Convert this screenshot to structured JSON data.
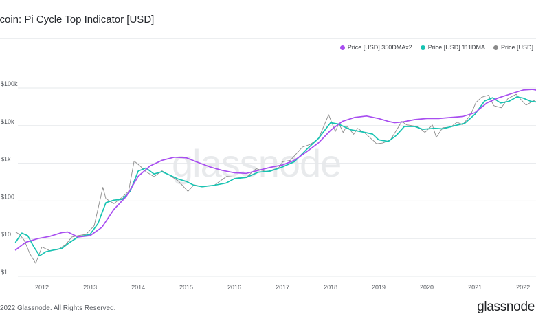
{
  "header": {
    "title": "itcoin: Pi Cycle Top Indicator [USD]"
  },
  "legend": [
    {
      "label": "Price [USD] 350DMAx2",
      "color": "#a84ef0"
    },
    {
      "label": "Price [USD] 111DMA",
      "color": "#17c3b2"
    },
    {
      "label": "Price [USD]",
      "color": "#8a8a8a"
    }
  ],
  "watermark": "glassnode",
  "footer": {
    "copyright": "2022 Glassnode. All Rights Reserved.",
    "brand": "glassnode"
  },
  "chart_data": {
    "type": "line",
    "title": "itcoin: Pi Cycle Top Indicator [USD]",
    "xlabel": "",
    "ylabel": "",
    "y_scale": "log",
    "ylim": [
      1,
      200000
    ],
    "xlim": [
      "2011-06-01",
      "2022-05-01"
    ],
    "grid": true,
    "legend_position": "top-right",
    "y_ticks": [
      {
        "value": 1,
        "label": "$1"
      },
      {
        "value": 10,
        "label": "$10"
      },
      {
        "value": 100,
        "label": "$100"
      },
      {
        "value": 1000,
        "label": "$1k"
      },
      {
        "value": 10000,
        "label": "$10k"
      },
      {
        "value": 100000,
        "label": "$100k"
      }
    ],
    "x_ticks": [
      {
        "value": "2012-01-01",
        "label": "2012"
      },
      {
        "value": "2013-01-01",
        "label": "2013"
      },
      {
        "value": "2014-01-01",
        "label": "2014"
      },
      {
        "value": "2015-01-01",
        "label": "2015"
      },
      {
        "value": "2016-01-01",
        "label": "2016"
      },
      {
        "value": "2017-01-01",
        "label": "2017"
      },
      {
        "value": "2018-01-01",
        "label": "2018"
      },
      {
        "value": "2019-01-01",
        "label": "2019"
      },
      {
        "value": "2020-01-01",
        "label": "2020"
      },
      {
        "value": "2021-01-01",
        "label": "2021"
      },
      {
        "value": "2022-01-01",
        "label": "2022"
      }
    ],
    "series": [
      {
        "name": "Price [USD] 350DMAx2",
        "color": "#a84ef0",
        "points": [
          [
            "2011-06-15",
            5
          ],
          [
            "2011-09-01",
            8
          ],
          [
            "2011-12-01",
            10
          ],
          [
            "2012-03-01",
            11.5
          ],
          [
            "2012-06-01",
            14.5
          ],
          [
            "2012-07-15",
            15
          ],
          [
            "2012-10-01",
            11
          ],
          [
            "2013-01-01",
            12
          ],
          [
            "2013-04-01",
            20
          ],
          [
            "2013-07-01",
            60
          ],
          [
            "2013-10-01",
            130
          ],
          [
            "2014-01-01",
            450
          ],
          [
            "2014-04-01",
            850
          ],
          [
            "2014-07-01",
            1200
          ],
          [
            "2014-10-01",
            1450
          ],
          [
            "2015-01-01",
            1400
          ],
          [
            "2015-04-01",
            1050
          ],
          [
            "2015-07-01",
            800
          ],
          [
            "2015-10-01",
            650
          ],
          [
            "2016-01-01",
            560
          ],
          [
            "2016-04-01",
            540
          ],
          [
            "2016-07-01",
            650
          ],
          [
            "2016-10-01",
            780
          ],
          [
            "2017-01-01",
            900
          ],
          [
            "2017-04-01",
            1200
          ],
          [
            "2017-07-01",
            2000
          ],
          [
            "2017-10-01",
            3500
          ],
          [
            "2018-01-01",
            7500
          ],
          [
            "2018-04-01",
            13000
          ],
          [
            "2018-07-01",
            16500
          ],
          [
            "2018-10-01",
            18000
          ],
          [
            "2019-01-01",
            15500
          ],
          [
            "2019-03-15",
            13000
          ],
          [
            "2019-05-01",
            12000
          ],
          [
            "2019-07-01",
            12500
          ],
          [
            "2019-10-01",
            14500
          ],
          [
            "2020-01-01",
            15500
          ],
          [
            "2020-04-01",
            15500
          ],
          [
            "2020-07-01",
            16500
          ],
          [
            "2020-10-01",
            17500
          ],
          [
            "2021-01-01",
            22000
          ],
          [
            "2021-04-01",
            40000
          ],
          [
            "2021-07-01",
            55000
          ],
          [
            "2021-10-01",
            70000
          ],
          [
            "2022-01-01",
            88000
          ],
          [
            "2022-03-15",
            92000
          ],
          [
            "2022-05-01",
            85000
          ]
        ]
      },
      {
        "name": "Price [USD] 111DMA",
        "color": "#17c3b2",
        "points": [
          [
            "2011-06-15",
            8
          ],
          [
            "2011-08-01",
            14
          ],
          [
            "2011-09-15",
            12
          ],
          [
            "2011-11-01",
            6
          ],
          [
            "2011-12-15",
            3.5
          ],
          [
            "2012-02-01",
            4.5
          ],
          [
            "2012-04-01",
            5
          ],
          [
            "2012-06-01",
            5.5
          ],
          [
            "2012-08-01",
            8
          ],
          [
            "2012-10-01",
            11
          ],
          [
            "2013-01-01",
            13
          ],
          [
            "2013-03-01",
            25
          ],
          [
            "2013-05-01",
            90
          ],
          [
            "2013-07-01",
            105
          ],
          [
            "2013-09-01",
            110
          ],
          [
            "2013-11-01",
            180
          ],
          [
            "2014-01-01",
            620
          ],
          [
            "2014-03-01",
            750
          ],
          [
            "2014-05-01",
            520
          ],
          [
            "2014-07-01",
            600
          ],
          [
            "2014-09-01",
            480
          ],
          [
            "2014-11-01",
            380
          ],
          [
            "2015-01-01",
            330
          ],
          [
            "2015-03-01",
            260
          ],
          [
            "2015-05-01",
            240
          ],
          [
            "2015-08-01",
            260
          ],
          [
            "2015-11-01",
            300
          ],
          [
            "2016-01-01",
            390
          ],
          [
            "2016-04-01",
            420
          ],
          [
            "2016-07-01",
            580
          ],
          [
            "2016-10-01",
            620
          ],
          [
            "2017-01-01",
            800
          ],
          [
            "2017-04-01",
            1100
          ],
          [
            "2017-07-01",
            2300
          ],
          [
            "2017-10-01",
            4600
          ],
          [
            "2018-01-01",
            12000
          ],
          [
            "2018-03-01",
            11000
          ],
          [
            "2018-06-01",
            7800
          ],
          [
            "2018-09-01",
            6800
          ],
          [
            "2018-11-15",
            6000
          ],
          [
            "2019-01-01",
            4200
          ],
          [
            "2019-03-15",
            3800
          ],
          [
            "2019-05-15",
            5500
          ],
          [
            "2019-07-15",
            9500
          ],
          [
            "2019-10-01",
            9500
          ],
          [
            "2019-12-01",
            8000
          ],
          [
            "2020-03-01",
            8500
          ],
          [
            "2020-05-01",
            8200
          ],
          [
            "2020-08-01",
            10000
          ],
          [
            "2020-10-15",
            11500
          ],
          [
            "2021-01-01",
            20000
          ],
          [
            "2021-03-15",
            45000
          ],
          [
            "2021-05-15",
            55000
          ],
          [
            "2021-07-15",
            40000
          ],
          [
            "2021-09-15",
            44000
          ],
          [
            "2021-11-15",
            58000
          ],
          [
            "2022-01-01",
            54000
          ],
          [
            "2022-03-01",
            44000
          ],
          [
            "2022-05-01",
            42000
          ]
        ]
      },
      {
        "name": "Price [USD]",
        "color": "#8a8a8a",
        "points": [
          [
            "2011-06-15",
            15
          ],
          [
            "2011-07-15",
            13
          ],
          [
            "2011-08-20",
            9
          ],
          [
            "2011-10-01",
            4
          ],
          [
            "2011-11-15",
            2.2
          ],
          [
            "2012-01-01",
            6
          ],
          [
            "2012-03-01",
            4.8
          ],
          [
            "2012-05-01",
            5.1
          ],
          [
            "2012-07-01",
            7
          ],
          [
            "2012-08-15",
            11
          ],
          [
            "2012-10-01",
            12
          ],
          [
            "2012-12-01",
            13
          ],
          [
            "2013-02-01",
            22
          ],
          [
            "2013-04-08",
            230
          ],
          [
            "2013-05-01",
            115
          ],
          [
            "2013-07-01",
            85
          ],
          [
            "2013-09-01",
            125
          ],
          [
            "2013-10-20",
            180
          ],
          [
            "2013-12-01",
            1150
          ],
          [
            "2014-01-15",
            850
          ],
          [
            "2014-03-01",
            600
          ],
          [
            "2014-05-01",
            440
          ],
          [
            "2014-07-01",
            630
          ],
          [
            "2014-09-01",
            470
          ],
          [
            "2014-11-01",
            340
          ],
          [
            "2015-01-14",
            180
          ],
          [
            "2015-03-01",
            270
          ],
          [
            "2015-05-01",
            235
          ],
          [
            "2015-08-01",
            260
          ],
          [
            "2015-11-04",
            450
          ],
          [
            "2016-01-01",
            430
          ],
          [
            "2016-04-01",
            420
          ],
          [
            "2016-06-15",
            720
          ],
          [
            "2016-09-01",
            600
          ],
          [
            "2016-12-01",
            750
          ],
          [
            "2017-01-04",
            1100
          ],
          [
            "2017-03-01",
            1200
          ],
          [
            "2017-06-01",
            2700
          ],
          [
            "2017-08-01",
            3200
          ],
          [
            "2017-10-01",
            4500
          ],
          [
            "2017-12-17",
            19500
          ],
          [
            "2018-02-06",
            7000
          ],
          [
            "2018-03-05",
            11500
          ],
          [
            "2018-04-06",
            6600
          ],
          [
            "2018-05-05",
            9800
          ],
          [
            "2018-06-25",
            5900
          ],
          [
            "2018-07-25",
            8400
          ],
          [
            "2018-09-15",
            6500
          ],
          [
            "2018-11-25",
            3900
          ],
          [
            "2018-12-15",
            3300
          ],
          [
            "2019-02-01",
            3450
          ],
          [
            "2019-04-01",
            4200
          ],
          [
            "2019-06-26",
            13000
          ],
          [
            "2019-08-01",
            10500
          ],
          [
            "2019-10-26",
            9400
          ],
          [
            "2019-12-18",
            6600
          ],
          [
            "2020-02-13",
            10400
          ],
          [
            "2020-03-13",
            4900
          ],
          [
            "2020-05-01",
            8800
          ],
          [
            "2020-07-01",
            9200
          ],
          [
            "2020-08-17",
            12300
          ],
          [
            "2020-10-01",
            10700
          ],
          [
            "2020-11-30",
            19500
          ],
          [
            "2021-01-08",
            41000
          ],
          [
            "2021-02-21",
            57000
          ],
          [
            "2021-04-14",
            64000
          ],
          [
            "2021-05-23",
            34000
          ],
          [
            "2021-07-20",
            29800
          ],
          [
            "2021-09-07",
            52000
          ],
          [
            "2021-11-10",
            68000
          ],
          [
            "2022-01-24",
            35000
          ],
          [
            "2022-03-28",
            47000
          ],
          [
            "2022-04-15",
            40000
          ],
          [
            "2022-05-01",
            38000
          ]
        ]
      }
    ]
  }
}
